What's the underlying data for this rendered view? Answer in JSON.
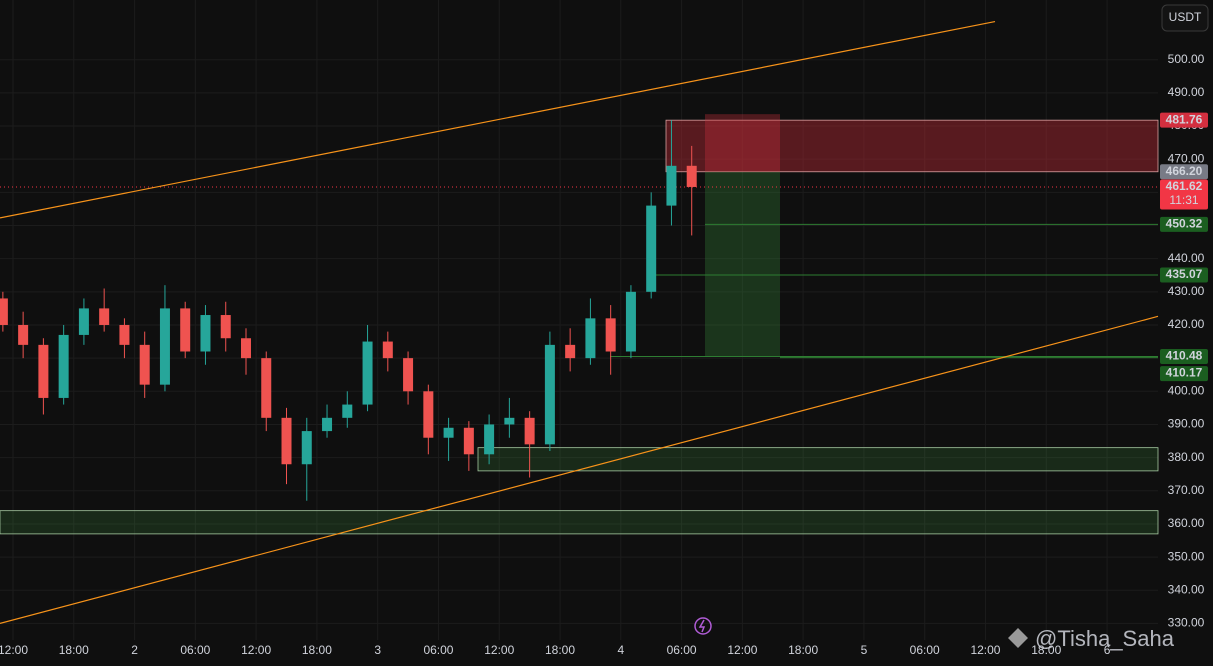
{
  "chart_data": {
    "type": "candlestick",
    "currency": "USDT",
    "up_color": "#26a69a",
    "down_color": "#ef5350",
    "open": [
      428,
      420,
      414,
      398,
      417,
      425,
      420,
      414,
      402,
      425,
      412,
      423,
      416,
      410,
      392,
      378,
      388,
      392,
      396,
      415,
      410,
      400,
      386,
      389,
      381,
      390,
      392,
      384,
      414,
      410,
      422,
      412,
      430,
      456,
      468
    ],
    "high": [
      430,
      424,
      416,
      420,
      428,
      431,
      422,
      418,
      432,
      427,
      426,
      427,
      419,
      412,
      395,
      392,
      396,
      400,
      420,
      418,
      412,
      402,
      392,
      391,
      393,
      398,
      394,
      418,
      419,
      428,
      426,
      432,
      460,
      481.76,
      474
    ],
    "low": [
      418,
      410,
      393,
      396,
      414,
      418,
      410,
      398,
      400,
      410,
      408,
      412,
      405,
      388,
      372,
      367,
      386,
      389,
      394,
      406,
      396,
      381,
      379,
      376,
      378,
      386,
      374,
      382,
      406,
      408,
      405,
      410,
      428,
      450,
      447
    ],
    "close": [
      420,
      414,
      398,
      417,
      425,
      420,
      414,
      402,
      425,
      412,
      423,
      416,
      410,
      392,
      378,
      388,
      392,
      396,
      415,
      410,
      400,
      386,
      389,
      381,
      390,
      392,
      384,
      414,
      410,
      422,
      412,
      430,
      456,
      468,
      461.62
    ],
    "xticks": [
      "12:00",
      "18:00",
      "2",
      "06:00",
      "12:00",
      "18:00",
      "3",
      "06:00",
      "12:00",
      "18:00",
      "4",
      "06:00",
      "12:00",
      "18:00",
      "5",
      "06:00",
      "12:00",
      "18:00",
      "6"
    ],
    "ylim": [
      325,
      518
    ],
    "yticks": [
      {
        "value": 330,
        "label": "330.00"
      },
      {
        "value": 340,
        "label": "340.00"
      },
      {
        "value": 350,
        "label": "350.00"
      },
      {
        "value": 360,
        "label": "360.00"
      },
      {
        "value": 370,
        "label": "370.00"
      },
      {
        "value": 380,
        "label": "380.00"
      },
      {
        "value": 390,
        "label": "390.00"
      },
      {
        "value": 400,
        "label": "400.00"
      },
      {
        "value": 410,
        "label": "410.00"
      },
      {
        "value": 420,
        "label": "420.00"
      },
      {
        "value": 430,
        "label": "430.00"
      },
      {
        "value": 440,
        "label": "440.00"
      },
      {
        "value": 450,
        "label": "450.00"
      },
      {
        "value": 460,
        "label": "460.00"
      },
      {
        "value": 470,
        "label": "470.00"
      },
      {
        "value": 480,
        "label": "480.00"
      },
      {
        "value": 490,
        "label": "490.00"
      },
      {
        "value": 500,
        "label": "500.00"
      }
    ],
    "grid": true,
    "position": {
      "stop": 481.76,
      "entry": {
        "value": 466.2,
        "label": "466.20"
      },
      "target": 410.48
    },
    "levels": [
      450.32,
      435.07,
      410.17
    ],
    "current": {
      "price": 461.62,
      "countdown": "11:31"
    },
    "zones": [
      {
        "low": 376,
        "high": 383
      },
      {
        "low": 357,
        "high": 364
      }
    ],
    "channel": {
      "upper": [
        452.3,
        511.5
      ],
      "lower": [
        330,
        422.6
      ]
    },
    "watermark": "@Tisha_Saha"
  }
}
